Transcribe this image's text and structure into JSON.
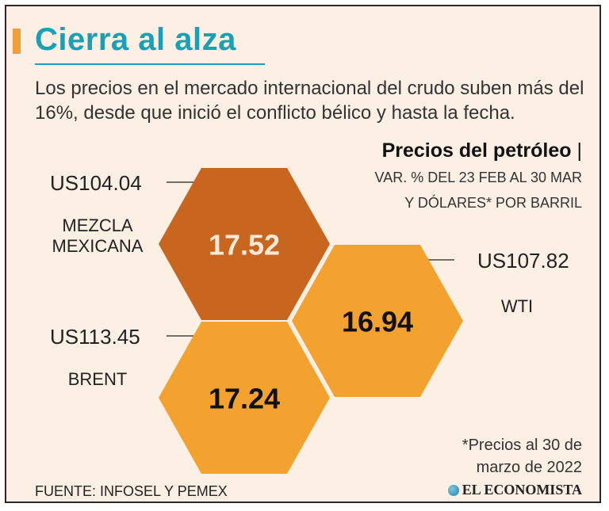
{
  "header": {
    "title": "Cierra al alza",
    "subtitle": "Los precios en el mercado internacional del crudo suben más del 16%, desde que inició el conflicto bélico y hasta la fecha."
  },
  "chart_data": {
    "type": "other",
    "title": "Precios del petróleo",
    "title_suffix": "|",
    "note_line1": "VAR. % DEL 23 FEB AL 30 MAR",
    "note_line2": "Y DÓLARES* POR BARRIL",
    "series": [
      {
        "name": "MEZCLA MEXICANA",
        "name_line1": "MEZCLA",
        "name_line2": "MEXICANA",
        "price_prefix": "US",
        "price": "104.04",
        "change": "17.52",
        "color": "#c8651e",
        "text_color": "#fce9d8"
      },
      {
        "name": "WTI",
        "price_prefix": "US",
        "price": "107.82",
        "change": "16.94",
        "color": "#f3a22f",
        "text_color": "#111111"
      },
      {
        "name": "BRENT",
        "price_prefix": "US",
        "price": "113.45",
        "change": "17.24",
        "color": "#f3a22f",
        "text_color": "#111111"
      }
    ]
  },
  "footnote": {
    "line1": "*Precios al 30 de",
    "line2": "marzo de 2022"
  },
  "source": "FUENTE: INFOSEL Y PEMEX",
  "brand": "EL ECONOMISTA",
  "colors": {
    "title": "#1aa0b4",
    "accent": "#f0a03a",
    "background": "#fcefe4"
  }
}
